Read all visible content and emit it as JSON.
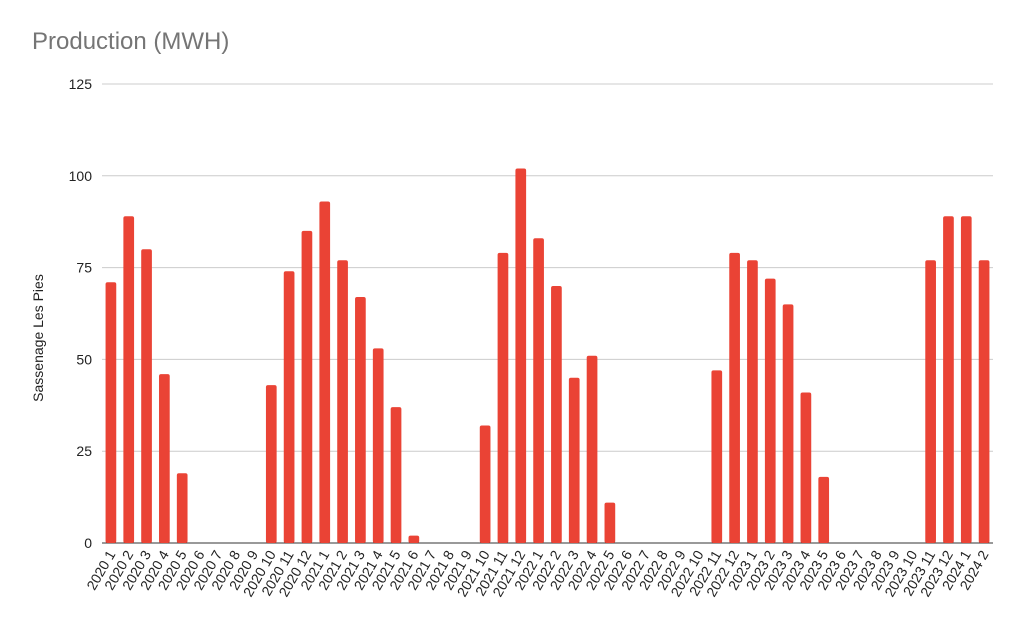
{
  "chart_data": {
    "type": "bar",
    "title": "Production (MWH)",
    "xlabel": "",
    "ylabel": "Sassenage Les Pies",
    "ylim": [
      0,
      125
    ],
    "yticks": [
      0,
      25,
      50,
      75,
      100,
      125
    ],
    "grid": true,
    "legend": "none",
    "bar_color": "#ea4335",
    "categories": [
      "2020 1",
      "2020 2",
      "2020 3",
      "2020 4",
      "2020 5",
      "2020 6",
      "2020 7",
      "2020 8",
      "2020 9",
      "2020 10",
      "2020 11",
      "2020 12",
      "2021 1",
      "2021 2",
      "2021 3",
      "2021 4",
      "2021 5",
      "2021 6",
      "2021 7",
      "2021 8",
      "2021 9",
      "2021 10",
      "2021 11",
      "2021 12",
      "2022 1",
      "2022 2",
      "2022 3",
      "2022 4",
      "2022 5",
      "2022 6",
      "2022 7",
      "2022 8",
      "2022 9",
      "2022 10",
      "2022 11",
      "2022 12",
      "2023 1",
      "2023 2",
      "2023 3",
      "2023 4",
      "2023 5",
      "2023 6",
      "2023 7",
      "2023 8",
      "2023 9",
      "2023 10",
      "2023 11",
      "2023 12",
      "2024 1",
      "2024 2"
    ],
    "values": [
      71,
      89,
      80,
      46,
      19,
      0,
      0,
      0,
      0,
      43,
      74,
      85,
      93,
      77,
      67,
      53,
      37,
      2,
      0,
      0,
      0,
      32,
      79,
      102,
      83,
      70,
      45,
      51,
      11,
      0,
      0,
      0,
      0,
      0,
      47,
      79,
      77,
      72,
      65,
      41,
      18,
      0,
      0,
      0,
      0,
      0,
      77,
      89,
      89,
      77
    ]
  }
}
